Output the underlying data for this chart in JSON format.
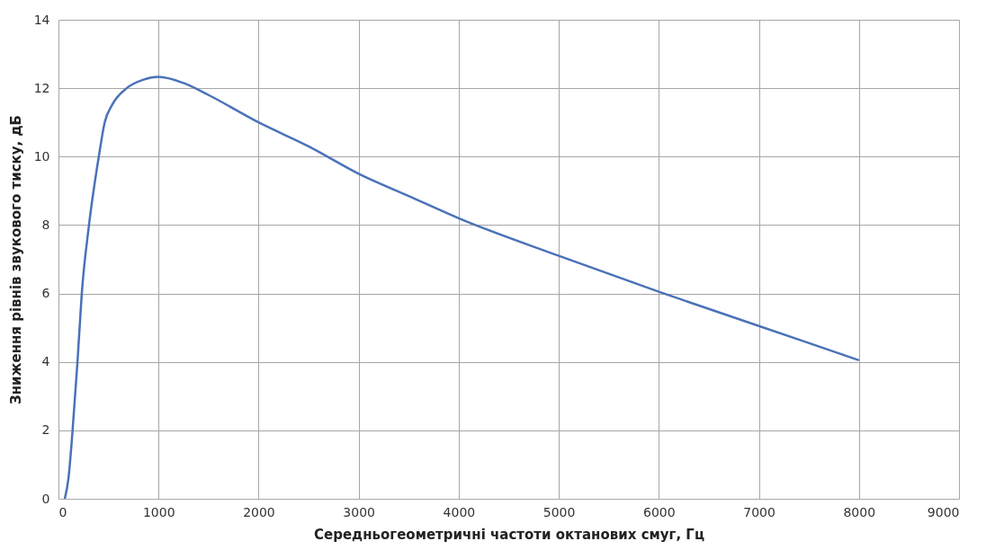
{
  "chart_data": {
    "type": "line",
    "xlabel": "Середньогеометричні частоти октанових смуг, Гц",
    "ylabel": "Зниження рівнів звукового тиску, дБ",
    "x": [
      63,
      100,
      141,
      190,
      233,
      305,
      403,
      462,
      534,
      682,
      850,
      1000,
      1250,
      1500,
      2000,
      2500,
      3000,
      3500,
      4000,
      5000,
      6000,
      7000,
      8000
    ],
    "series": [
      {
        "color": "#4a72b8",
        "values": [
          0,
          0.6,
          2,
          4,
          6,
          8,
          10,
          11,
          11.5,
          12,
          12.25,
          12.33,
          12.15,
          11.8,
          11,
          10.3,
          9.5,
          8.85,
          8.2,
          7.1,
          6.05,
          5.05,
          4.05
        ]
      }
    ],
    "xlim": [
      0,
      9000
    ],
    "xticks": [
      0,
      1000,
      2000,
      3000,
      4000,
      5000,
      6000,
      7000,
      8000,
      9000
    ],
    "ylim": [
      0,
      14
    ],
    "yticks": [
      0,
      2,
      4,
      6,
      8,
      10,
      12,
      14
    ],
    "grid": true,
    "marker": "none",
    "line_style": "solid"
  }
}
